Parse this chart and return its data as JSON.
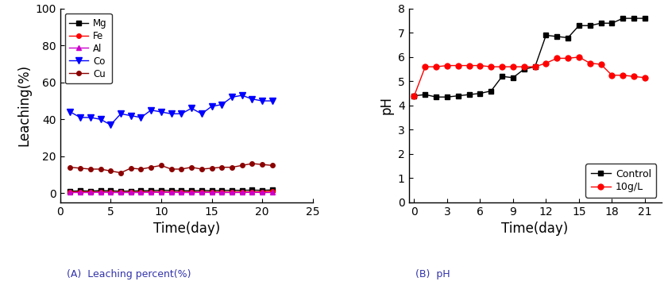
{
  "chart_A": {
    "xlabel": "Time(day)",
    "ylabel": "Leaching(%)",
    "xlim": [
      0,
      25
    ],
    "ylim": [
      -5,
      100
    ],
    "xticks": [
      0,
      5,
      10,
      15,
      20,
      25
    ],
    "yticks": [
      0,
      20,
      40,
      60,
      80,
      100
    ],
    "series": {
      "Mg": {
        "color": "#000000",
        "marker": "s",
        "markersize": 4,
        "x": [
          1,
          2,
          3,
          4,
          5,
          6,
          7,
          8,
          9,
          10,
          11,
          12,
          13,
          14,
          15,
          16,
          17,
          18,
          19,
          20,
          21
        ],
        "y": [
          1.0,
          1.2,
          1.1,
          1.3,
          1.2,
          1.0,
          1.1,
          1.2,
          1.3,
          1.5,
          1.4,
          1.3,
          1.2,
          1.4,
          1.3,
          1.4,
          1.5,
          1.5,
          1.6,
          1.5,
          1.7
        ]
      },
      "Fe": {
        "color": "#ff0000",
        "marker": "o",
        "markersize": 4,
        "x": [
          1,
          2,
          3,
          4,
          5,
          6,
          7,
          8,
          9,
          10,
          11,
          12,
          13,
          14,
          15,
          16,
          17,
          18,
          19,
          20,
          21
        ],
        "y": [
          0.5,
          0.6,
          0.5,
          0.5,
          0.4,
          0.4,
          0.4,
          0.5,
          0.5,
          0.6,
          0.5,
          0.5,
          0.5,
          0.5,
          0.5,
          0.5,
          0.5,
          0.6,
          0.6,
          0.7,
          1.0
        ]
      },
      "Al": {
        "color": "#cc00cc",
        "marker": "^",
        "markersize": 4,
        "x": [
          1,
          2,
          3,
          4,
          5,
          6,
          7,
          8,
          9,
          10,
          11,
          12,
          13,
          14,
          15,
          16,
          17,
          18,
          19,
          20,
          21
        ],
        "y": [
          0.3,
          0.3,
          0.3,
          0.4,
          0.3,
          0.3,
          0.3,
          0.3,
          0.4,
          0.4,
          0.4,
          0.3,
          0.3,
          0.4,
          0.3,
          0.3,
          0.3,
          0.3,
          0.4,
          0.3,
          0.3
        ]
      },
      "Co": {
        "color": "#0000ff",
        "marker": "v",
        "markersize": 6,
        "x": [
          1,
          2,
          3,
          4,
          5,
          6,
          7,
          8,
          9,
          10,
          11,
          12,
          13,
          14,
          15,
          16,
          17,
          18,
          19,
          20,
          21
        ],
        "y": [
          44,
          41,
          41,
          40,
          37,
          43,
          42,
          41,
          45,
          44,
          43,
          43,
          46,
          43,
          47,
          48,
          52,
          53,
          51,
          50,
          50
        ]
      },
      "Cu": {
        "color": "#8B0000",
        "marker": "o",
        "markersize": 4,
        "x": [
          1,
          2,
          3,
          4,
          5,
          6,
          7,
          8,
          9,
          10,
          11,
          12,
          13,
          14,
          15,
          16,
          17,
          18,
          19,
          20,
          21
        ],
        "y": [
          14,
          13.5,
          13,
          13,
          12,
          11,
          13.5,
          13,
          14,
          15,
          13,
          13,
          14,
          13,
          13.5,
          14,
          14,
          15,
          16,
          15.5,
          15
        ]
      }
    }
  },
  "chart_B": {
    "xlabel": "Time(day)",
    "ylabel": "pH",
    "xlim": [
      -0.5,
      22.5
    ],
    "ylim": [
      0,
      8
    ],
    "xticks": [
      0,
      3,
      6,
      9,
      12,
      15,
      18,
      21
    ],
    "yticks": [
      0,
      1,
      2,
      3,
      4,
      5,
      6,
      7,
      8
    ],
    "series": {
      "Control": {
        "color": "#000000",
        "marker": "s",
        "markersize": 5,
        "x": [
          0,
          1,
          2,
          3,
          4,
          5,
          6,
          7,
          8,
          9,
          10,
          11,
          12,
          13,
          14,
          15,
          16,
          17,
          18,
          19,
          20,
          21
        ],
        "y": [
          4.4,
          4.45,
          4.35,
          4.35,
          4.4,
          4.45,
          4.5,
          4.6,
          5.2,
          5.15,
          5.5,
          5.6,
          6.9,
          6.85,
          6.8,
          7.3,
          7.3,
          7.4,
          7.4,
          7.6,
          7.6,
          7.6
        ]
      },
      "10g/L": {
        "color": "#ff0000",
        "marker": "o",
        "markersize": 5,
        "x": [
          0,
          1,
          2,
          3,
          4,
          5,
          6,
          7,
          8,
          9,
          10,
          11,
          12,
          13,
          14,
          15,
          16,
          17,
          18,
          19,
          20,
          21
        ],
        "y": [
          4.4,
          5.6,
          5.6,
          5.65,
          5.65,
          5.65,
          5.65,
          5.6,
          5.6,
          5.6,
          5.6,
          5.6,
          5.75,
          5.95,
          5.95,
          6.0,
          5.75,
          5.7,
          5.25,
          5.25,
          5.2,
          5.15
        ]
      }
    }
  },
  "caption_A": "(A)  Leaching percent(%)",
  "caption_B": "(B)  pH",
  "caption_color": "#3333aa",
  "fig_facecolor": "#ffffff"
}
